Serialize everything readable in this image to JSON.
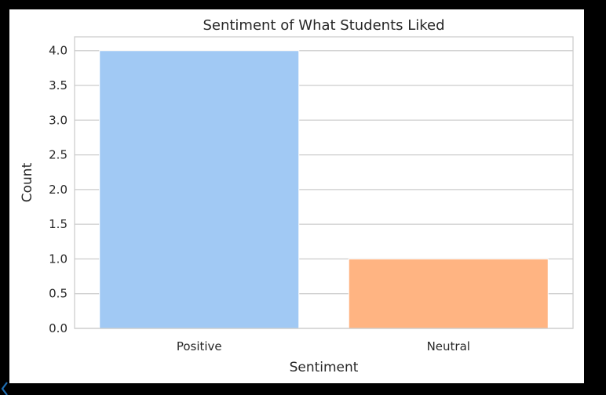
{
  "chart_data": {
    "type": "bar",
    "title": "Sentiment of What Students Liked",
    "xlabel": "Sentiment",
    "ylabel": "Count",
    "categories": [
      "Positive",
      "Neutral"
    ],
    "values": [
      4,
      1
    ],
    "colors": [
      "#a1c9f4",
      "#ffb482"
    ],
    "ylim": [
      0,
      4.2
    ],
    "yticks": [
      0,
      0.5,
      1,
      1.5,
      2,
      2.5,
      3,
      3.5,
      4
    ],
    "ytick_labels": [
      "0.0",
      "0.5",
      "1.0",
      "1.5",
      "2.0",
      "2.5",
      "3.0",
      "3.5",
      "4.0"
    ],
    "grid": true,
    "grid_color": "#cccccc",
    "spine_color": "#cccccc"
  }
}
